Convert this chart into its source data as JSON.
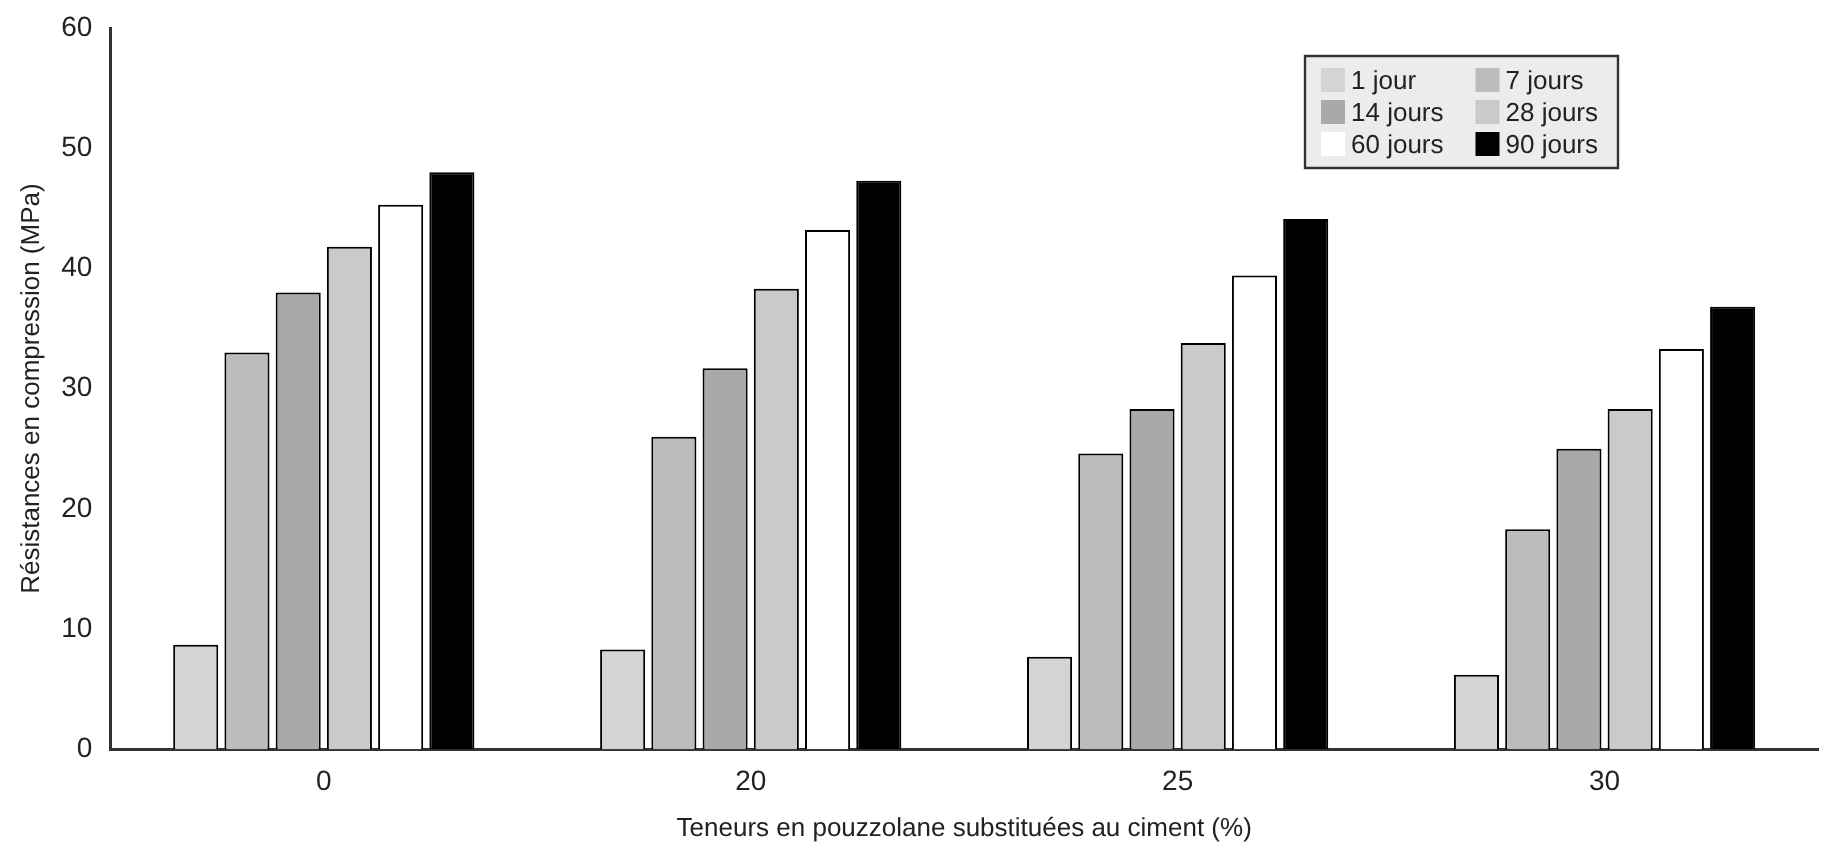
{
  "chart_data": {
    "type": "bar",
    "xlabel": "Teneurs en pouzzolane substituées au ciment (%)",
    "ylabel": "Résistances en compression (MPa)",
    "categories": [
      "0",
      "20",
      "25",
      "30"
    ],
    "series": [
      {
        "name": "1 jour",
        "color": "#d4d4d4",
        "values": [
          8.7,
          8.3,
          7.7,
          6.2
        ]
      },
      {
        "name": "7 jours",
        "color": "#bcbcbc",
        "values": [
          33,
          26,
          24.6,
          18.3
        ]
      },
      {
        "name": "14 jours",
        "color": "#a9a9a9",
        "values": [
          38,
          31.7,
          28.3,
          25
        ]
      },
      {
        "name": "28 jours",
        "color": "#cacaca",
        "values": [
          41.8,
          38.3,
          33.8,
          28.3
        ]
      },
      {
        "name": "60 jours",
        "color": "#ffffff",
        "values": [
          45.3,
          43.2,
          39.4,
          33.3
        ]
      },
      {
        "name": "90 jours",
        "color": "#000000",
        "values": [
          48,
          47.3,
          44.1,
          36.8
        ]
      }
    ],
    "ylim": [
      0,
      60
    ],
    "yticks": [
      0,
      10,
      20,
      30,
      40,
      50,
      60
    ],
    "grid": false,
    "legend": "top right"
  }
}
